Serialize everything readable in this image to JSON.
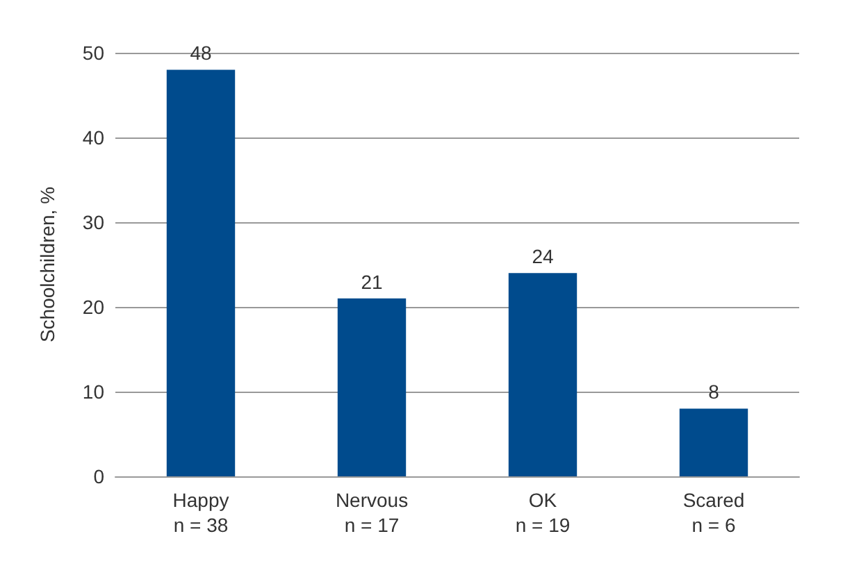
{
  "chart_data": {
    "type": "bar",
    "ylabel": "Schoolchildren, %",
    "categories": [
      "Happy\nn = 38",
      "Nervous\nn = 17",
      "OK\nn = 19",
      "Scared\nn = 6"
    ],
    "values": [
      48,
      21,
      24,
      8
    ],
    "color": "#004b8d",
    "ylim": [
      0,
      50
    ],
    "yticks": [
      0,
      10,
      20,
      30,
      40,
      50
    ],
    "grid": "y",
    "data_labels": true
  }
}
